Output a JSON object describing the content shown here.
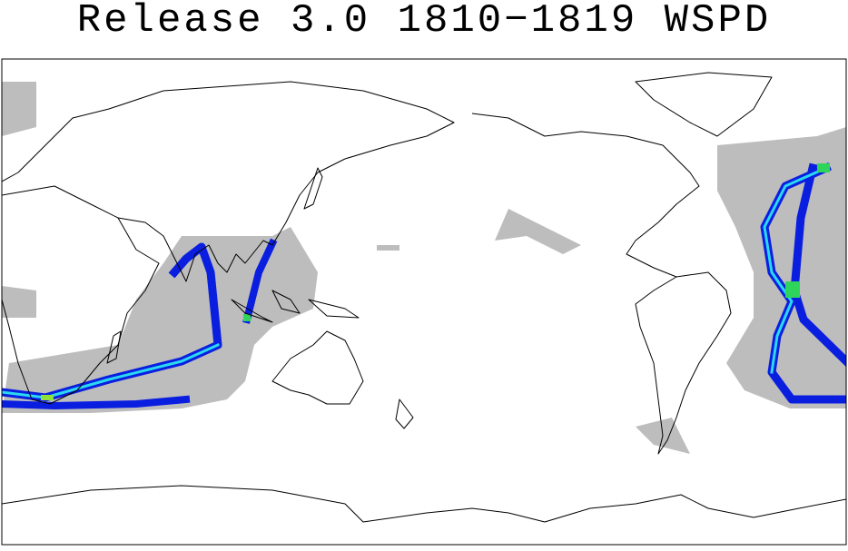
{
  "header": {
    "title": "Release 3.0 1810−1819 WSPD"
  }
}
